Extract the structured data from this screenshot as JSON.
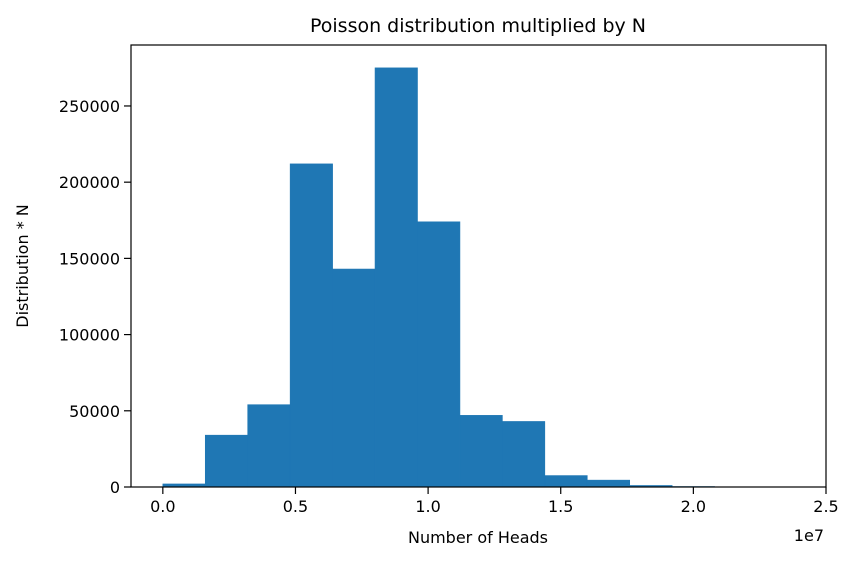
{
  "chart_data": {
    "type": "bar",
    "title": "Poisson distribution multiplied by N",
    "xlabel": "Number of Heads",
    "ylabel": "Distribution * N",
    "x_offset_label": "1e7",
    "xlim": [
      -0.12,
      2.5
    ],
    "ylim": [
      0,
      290000
    ],
    "x_ticks": [
      0.0,
      0.5,
      1.0,
      1.5,
      2.0,
      2.5
    ],
    "x_tick_labels": [
      "0.0",
      "0.5",
      "1.0",
      "1.5",
      "2.0",
      "2.5"
    ],
    "y_ticks": [
      0,
      50000,
      100000,
      150000,
      200000,
      250000
    ],
    "y_tick_labels": [
      "0",
      "50000",
      "100000",
      "150000",
      "200000",
      "250000"
    ],
    "bin_edges": [
      0.0,
      0.16,
      0.32,
      0.48,
      0.64,
      0.8,
      0.96,
      1.12,
      1.28,
      1.44,
      1.6,
      1.76,
      1.92,
      2.08,
      2.24,
      2.4
    ],
    "values": [
      2000,
      34000,
      54000,
      212000,
      143000,
      275000,
      174000,
      47000,
      43000,
      7500,
      4500,
      1000,
      300,
      100,
      50
    ],
    "bar_color": "#1f77b4",
    "grid": false,
    "legend": "none"
  }
}
